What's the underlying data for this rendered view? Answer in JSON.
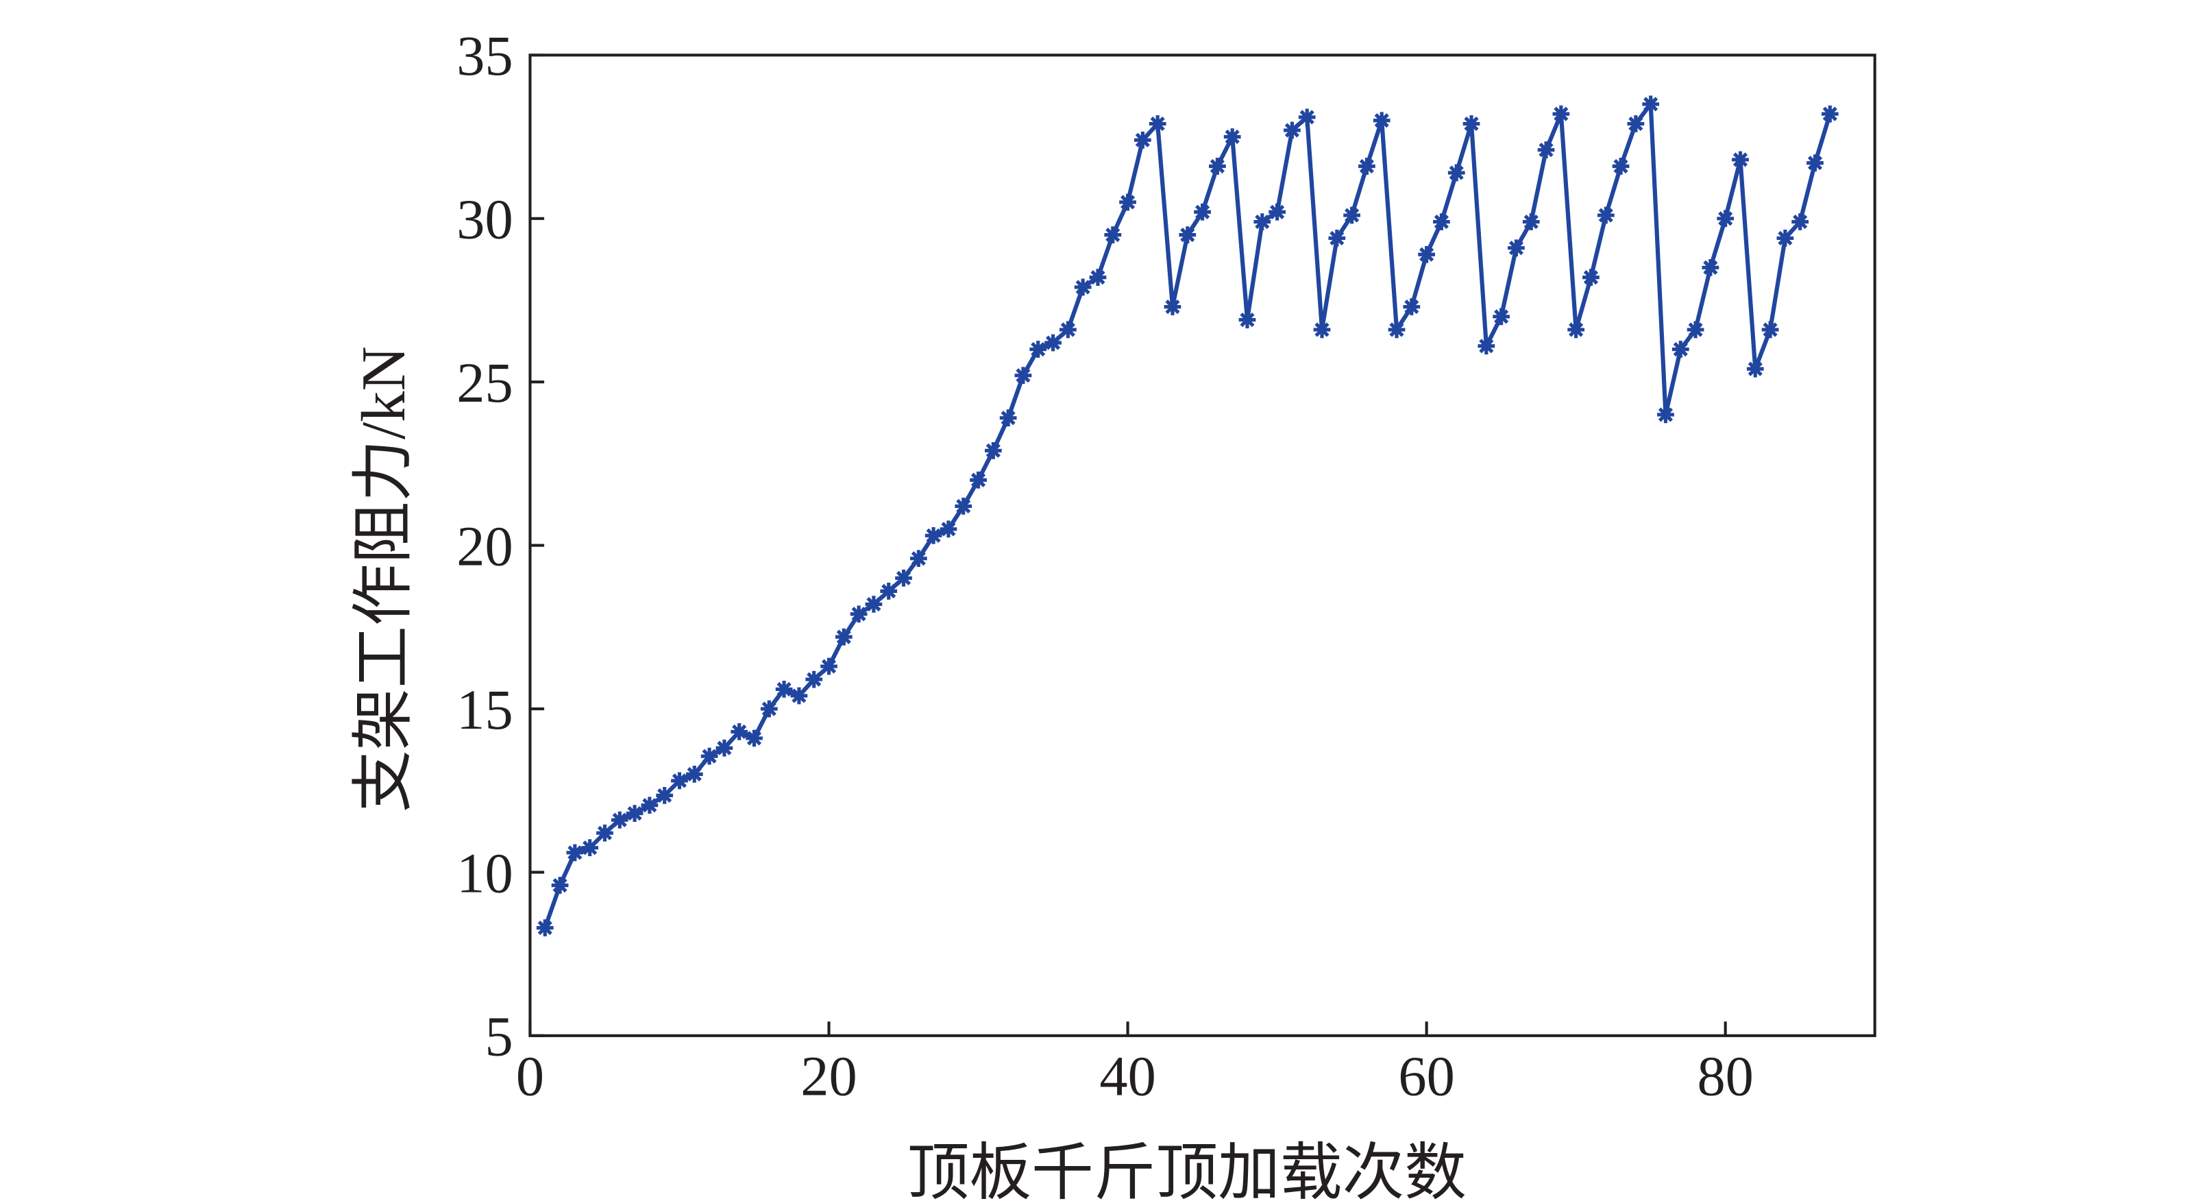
{
  "chart_data": {
    "type": "line",
    "xlabel": "顶板千斤顶加载次数",
    "ylabel": "支架工作阻力/kN",
    "x": [
      1,
      2,
      3,
      4,
      5,
      6,
      7,
      8,
      9,
      10,
      11,
      12,
      13,
      14,
      15,
      16,
      17,
      18,
      19,
      20,
      21,
      22,
      23,
      24,
      25,
      26,
      27,
      28,
      29,
      30,
      31,
      32,
      33,
      34,
      35,
      36,
      37,
      38,
      39,
      40,
      41,
      42,
      43,
      44,
      45,
      46,
      47,
      48,
      49,
      50,
      51,
      52,
      53,
      54,
      55,
      56,
      57,
      58,
      59,
      60,
      61,
      62,
      63,
      64,
      65,
      66,
      67,
      68,
      69,
      70,
      71,
      72,
      73,
      74,
      75,
      76,
      77,
      78,
      79,
      80,
      81,
      82,
      83,
      84,
      85,
      86,
      87
    ],
    "series": [
      {
        "name": "支架工作阻力",
        "color": "#2146a0",
        "values": [
          8.3,
          9.6,
          10.6,
          10.75,
          11.2,
          11.6,
          11.8,
          12.05,
          12.35,
          12.8,
          13.0,
          13.55,
          13.8,
          14.3,
          14.1,
          15.0,
          15.6,
          15.4,
          15.9,
          16.3,
          17.2,
          17.9,
          18.2,
          18.6,
          19.0,
          19.6,
          20.3,
          20.5,
          21.2,
          22.0,
          22.9,
          23.9,
          25.2,
          26.0,
          26.2,
          26.6,
          27.9,
          28.2,
          29.5,
          30.5,
          32.4,
          32.9,
          27.3,
          29.5,
          30.2,
          31.6,
          32.5,
          26.9,
          29.9,
          30.2,
          32.7,
          33.1,
          26.6,
          29.4,
          30.1,
          31.6,
          33.0,
          26.6,
          27.3,
          28.9,
          29.9,
          31.4,
          32.9,
          26.1,
          27.0,
          29.1,
          29.9,
          32.1,
          33.2,
          26.6,
          28.2,
          30.1,
          31.6,
          32.9,
          33.5,
          24.0,
          26.0,
          26.6,
          28.5,
          30.0,
          31.8,
          25.4,
          26.6,
          29.4,
          29.9,
          31.7,
          33.2
        ]
      }
    ],
    "xlim": [
      0,
      90
    ],
    "xticks": [
      0,
      20,
      40,
      60,
      80
    ],
    "ylim": [
      5,
      35
    ],
    "yticks": [
      5,
      10,
      15,
      20,
      25,
      30,
      35
    ],
    "marker": "asterisk"
  }
}
